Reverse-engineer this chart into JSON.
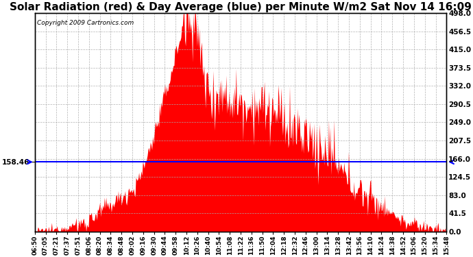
{
  "title": "Solar Radiation (red) & Day Average (blue) per Minute W/m2 Sat Nov 14 16:09",
  "copyright": "Copyright 2009 Cartronics.com",
  "avg_value": 158.46,
  "y_ticks": [
    0.0,
    41.5,
    83.0,
    124.5,
    166.0,
    207.5,
    249.0,
    290.5,
    332.0,
    373.5,
    415.0,
    456.5,
    498.0
  ],
  "ylim": [
    0,
    498.0
  ],
  "fill_color": "#FF0000",
  "line_color": "#0000FF",
  "bg_color": "#FFFFFF",
  "grid_color": "#AAAAAA",
  "title_fontsize": 11,
  "x_labels": [
    "06:50",
    "07:05",
    "07:21",
    "07:37",
    "07:51",
    "08:06",
    "08:20",
    "08:34",
    "08:48",
    "09:02",
    "09:16",
    "09:30",
    "09:44",
    "09:58",
    "10:12",
    "10:26",
    "10:40",
    "10:54",
    "11:08",
    "11:22",
    "11:36",
    "11:50",
    "12:04",
    "12:18",
    "12:32",
    "12:46",
    "13:00",
    "13:14",
    "13:28",
    "13:42",
    "13:56",
    "14:10",
    "14:24",
    "14:38",
    "14:52",
    "15:06",
    "15:20",
    "15:34",
    "15:48"
  ]
}
